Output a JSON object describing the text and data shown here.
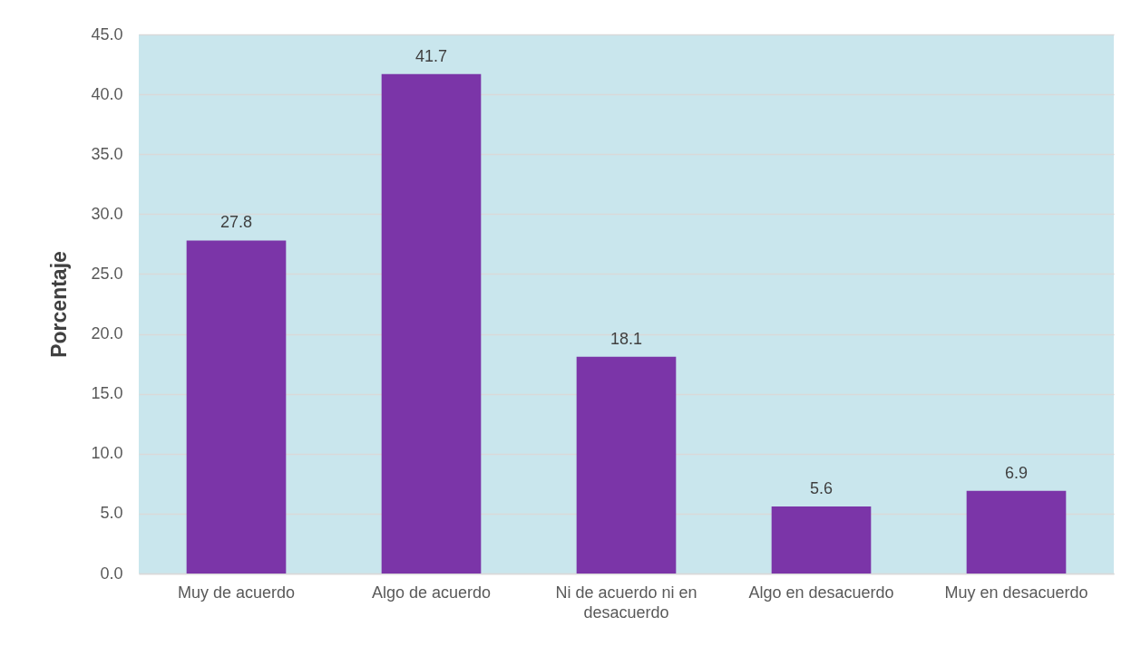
{
  "chart_data": {
    "type": "bar",
    "ylabel": "Porcentaje",
    "categories": [
      "Muy de acuerdo",
      "Algo de acuerdo",
      "Ni de acuerdo ni en desacuerdo",
      "Algo en desacuerdo",
      "Muy en desacuerdo"
    ],
    "values": [
      27.8,
      41.7,
      18.1,
      5.6,
      6.9
    ],
    "color": "#7b35a8",
    "ylim": [
      0,
      45
    ],
    "yticks": [
      {
        "value": 0,
        "label": "0.0"
      },
      {
        "value": 5,
        "label": "5.0"
      },
      {
        "value": 10,
        "label": "10.0"
      },
      {
        "value": 15,
        "label": "15.0"
      },
      {
        "value": 20,
        "label": "20.0"
      },
      {
        "value": 25,
        "label": "25.0"
      },
      {
        "value": 30,
        "label": "30.0"
      },
      {
        "value": 35,
        "label": "35.0"
      },
      {
        "value": 40,
        "label": "40.0"
      },
      {
        "value": 45,
        "label": "45.0"
      }
    ],
    "grid": "y",
    "data_labels": true
  }
}
